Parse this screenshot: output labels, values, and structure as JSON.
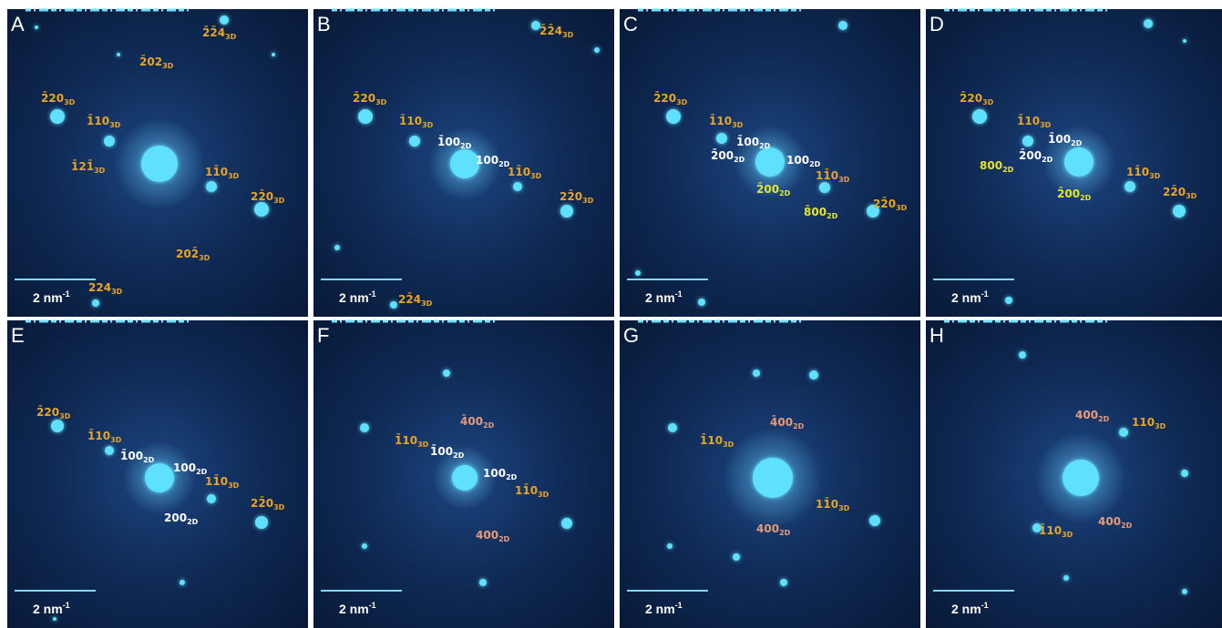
{
  "panels": [
    {
      "letter": "A",
      "scale_bar": {
        "text": "2 nm",
        "sup": "-1"
      },
      "labels": [
        {
          "text": "2̄2̄4",
          "sub": "3D"
        },
        {
          "text": "2̄02",
          "sub": "3D"
        },
        {
          "text": "2̄20",
          "sub": "3D"
        },
        {
          "text": "1̄10",
          "sub": "3D"
        },
        {
          "text": "1̄21̄",
          "sub": "3D"
        },
        {
          "text": "11̄0",
          "sub": "3D"
        },
        {
          "text": "22̄0",
          "sub": "3D"
        },
        {
          "text": "202̄",
          "sub": "3D"
        },
        {
          "text": "224",
          "sub": "3D"
        }
      ]
    },
    {
      "letter": "B",
      "scale_bar": {
        "text": "2 nm",
        "sup": "-1"
      },
      "labels": [
        {
          "text": "2̄2̄4",
          "sub": "3D"
        },
        {
          "text": "2̄20",
          "sub": "3D"
        },
        {
          "text": "1̄10",
          "sub": "3D"
        },
        {
          "text": "1̄00",
          "sub": "2D"
        },
        {
          "text": "100",
          "sub": "2D"
        },
        {
          "text": "11̄0",
          "sub": "3D"
        },
        {
          "text": "22̄0",
          "sub": "3D"
        },
        {
          "text": "22̄4",
          "sub": "3D"
        }
      ]
    },
    {
      "letter": "C",
      "scale_bar": {
        "text": "2 nm",
        "sup": "-1"
      },
      "labels": [
        {
          "text": "2̄20",
          "sub": "3D"
        },
        {
          "text": "1̄10",
          "sub": "3D"
        },
        {
          "text": "1̄00",
          "sub": "2D"
        },
        {
          "text": "2̄00",
          "sub": "2D"
        },
        {
          "text": "100",
          "sub": "2D"
        },
        {
          "text": "2̄00",
          "sub": "2D"
        },
        {
          "text": "11̄0",
          "sub": "3D"
        },
        {
          "text": "8̄00",
          "sub": "2D"
        },
        {
          "text": "22̄0",
          "sub": "3D"
        }
      ]
    },
    {
      "letter": "D",
      "scale_bar": {
        "text": "2 nm",
        "sup": "-1"
      },
      "labels": [
        {
          "text": "2̄20",
          "sub": "3D"
        },
        {
          "text": "1̄10",
          "sub": "3D"
        },
        {
          "text": "1̄00",
          "sub": "2D"
        },
        {
          "text": "800",
          "sub": "2D"
        },
        {
          "text": "2̄00",
          "sub": "2D"
        },
        {
          "text": "2̄00",
          "sub": "2D"
        },
        {
          "text": "11̄0",
          "sub": "3D"
        },
        {
          "text": "22̄0",
          "sub": "3D"
        }
      ]
    },
    {
      "letter": "E",
      "scale_bar": {
        "text": "2 nm",
        "sup": "-1"
      },
      "labels": [
        {
          "text": "2̄20",
          "sub": "3D"
        },
        {
          "text": "1̄10",
          "sub": "3D"
        },
        {
          "text": "1̄00",
          "sub": "2D"
        },
        {
          "text": "100",
          "sub": "2D"
        },
        {
          "text": "11̄0",
          "sub": "3D"
        },
        {
          "text": "200",
          "sub": "2D"
        },
        {
          "text": "22̄0",
          "sub": "3D"
        }
      ]
    },
    {
      "letter": "F",
      "scale_bar": {
        "text": "2 nm",
        "sup": "-1"
      },
      "labels": [
        {
          "text": "4̄00",
          "sub": "2D"
        },
        {
          "text": "1̄10",
          "sub": "3D"
        },
        {
          "text": "1̄00",
          "sub": "2D"
        },
        {
          "text": "100",
          "sub": "2D"
        },
        {
          "text": "11̄0",
          "sub": "3D"
        },
        {
          "text": "400",
          "sub": "2D"
        }
      ]
    },
    {
      "letter": "G",
      "scale_bar": {
        "text": "2 nm",
        "sup": "-1"
      },
      "labels": [
        {
          "text": "4̄00",
          "sub": "2D"
        },
        {
          "text": "1̄10",
          "sub": "3D"
        },
        {
          "text": "11̄0",
          "sub": "3D"
        },
        {
          "text": "400",
          "sub": "2D"
        }
      ]
    },
    {
      "letter": "H",
      "scale_bar": {
        "text": "2 nm",
        "sup": "-1"
      },
      "labels": [
        {
          "text": "400",
          "sub": "2D"
        },
        {
          "text": "110",
          "sub": "3D"
        },
        {
          "text": "1̄10",
          "sub": "3D"
        },
        {
          "text": "400",
          "sub": "2D"
        }
      ]
    }
  ]
}
